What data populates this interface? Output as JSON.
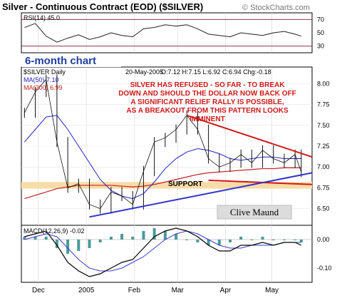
{
  "title": "Silver - Continuous Contract (EOD) ($SILVER)",
  "watermark": "© StockCharts.com",
  "period_label": "6-month chart",
  "colors": {
    "price": "#111111",
    "ma50": "#2020c8",
    "ma200": "#c82020",
    "trend_red": "#d01818",
    "trend_blue": "#3333cc",
    "support_band": "#f8dca8",
    "annotation": "#d01818",
    "rsi_band": "#7a1a3a",
    "macd_line": "#000000",
    "macd_signal": "#3a3acc",
    "macd_hist": "#4a9a9a",
    "title_blue": "#1f3fa0"
  },
  "chart_data": [
    {
      "type": "line",
      "name": "rsi",
      "title": "RSI(14) 45.0",
      "ylim": [
        20,
        80
      ],
      "yticks": [
        "70",
        "50",
        "30"
      ],
      "reference_lines": [
        70,
        30
      ],
      "x": [
        "2004-11-22",
        "2004-11-29",
        "2004-12-06",
        "2004-12-13",
        "2004-12-20",
        "2004-12-27",
        "2005-01-03",
        "2005-01-10",
        "2005-01-17",
        "2005-01-24",
        "2005-01-31",
        "2005-02-07",
        "2005-02-14",
        "2005-02-21",
        "2005-02-28",
        "2005-03-07",
        "2005-03-14",
        "2005-03-21",
        "2005-03-28",
        "2005-04-04",
        "2005-04-11",
        "2005-04-18",
        "2005-04-25",
        "2005-05-02",
        "2005-05-09",
        "2005-05-16",
        "2005-05-20"
      ],
      "values": [
        58,
        64,
        45,
        36,
        42,
        47,
        40,
        44,
        50,
        46,
        44,
        56,
        58,
        62,
        60,
        62,
        56,
        48,
        46,
        44,
        50,
        48,
        46,
        50,
        52,
        48,
        45
      ]
    },
    {
      "type": "line",
      "name": "price",
      "title": "$SILVER Daily",
      "date_label": "20-May-2005",
      "ohlc_text": "O:7.12 H:7.15 L:6.92 C:6.94 Chg:-0.18",
      "ylim": [
        6.3,
        8.2
      ],
      "yticks": [
        "8.00",
        "7.75",
        "7.50",
        "7.25",
        "7.00",
        "6.75",
        "6.50"
      ],
      "legend": [
        "$SILVER Daily",
        "MA(50) 7.10",
        "MA(200) 6.99"
      ],
      "annotation": "SILVER HAS REFUSED - SO FAR - TO BREAK DOWN AND SHOULD THE DOLLAR NOW BACK OFF A SIGNIFICANT RELIEF RALLY IS POSSIBLE, AS A BREAKOUT FROM THIS PATTERN LOOKS IMMINENT",
      "support_label": "SUPPORT",
      "signature": "Clive Maund",
      "support_band": [
        6.74,
        6.82
      ],
      "x": [
        "2004-11-22",
        "2004-11-29",
        "2004-12-06",
        "2004-12-13",
        "2004-12-20",
        "2004-12-27",
        "2005-01-03",
        "2005-01-10",
        "2005-01-17",
        "2005-01-24",
        "2005-01-31",
        "2005-02-07",
        "2005-02-14",
        "2005-02-21",
        "2005-02-28",
        "2005-03-07",
        "2005-03-14",
        "2005-03-21",
        "2005-03-28",
        "2005-04-04",
        "2005-04-11",
        "2005-04-18",
        "2005-04-25",
        "2005-05-02",
        "2005-05-09",
        "2005-05-16",
        "2005-05-20"
      ],
      "series": [
        {
          "name": "$SILVER Daily",
          "values": [
            7.65,
            7.9,
            8.05,
            7.3,
            6.75,
            6.8,
            6.55,
            6.5,
            6.7,
            6.65,
            6.55,
            6.95,
            7.3,
            7.35,
            7.45,
            7.62,
            7.45,
            7.1,
            7.0,
            7.05,
            7.15,
            7.05,
            7.2,
            7.1,
            7.05,
            7.15,
            6.94
          ]
        },
        {
          "name": "MA(50) 7.10",
          "values": [
            7.3,
            7.45,
            7.6,
            7.62,
            7.45,
            7.25,
            7.05,
            6.85,
            6.72,
            6.65,
            6.62,
            6.68,
            6.82,
            6.98,
            7.1,
            7.18,
            7.22,
            7.2,
            7.16,
            7.1,
            7.08,
            7.1,
            7.12,
            7.12,
            7.1,
            7.1,
            7.1
          ]
        },
        {
          "name": "MA(200) 6.99",
          "values": [
            6.62,
            6.66,
            6.7,
            6.74,
            6.76,
            6.78,
            6.78,
            6.78,
            6.78,
            6.77,
            6.76,
            6.77,
            6.79,
            6.82,
            6.85,
            6.88,
            6.91,
            6.93,
            6.94,
            6.95,
            6.96,
            6.97,
            6.98,
            6.98,
            6.99,
            6.99,
            6.99
          ]
        }
      ],
      "trendlines": [
        {
          "from": [
            "2005-03-07",
            7.62
          ],
          "to": [
            "2005-05-27",
            7.12
          ]
        },
        {
          "from": [
            "2005-03-21",
            6.84
          ],
          "to": [
            "2005-05-27",
            6.79
          ]
        },
        {
          "from": [
            "2005-01-03",
            6.4
          ],
          "to": [
            "2005-05-27",
            6.93
          ]
        }
      ]
    },
    {
      "type": "line",
      "name": "macd",
      "title": "MACD(12,26,9) -0.02",
      "ylim": [
        -0.15,
        0.05
      ],
      "yticks": [
        "0.00",
        "-0.10"
      ],
      "x_tick_labels": [
        "Dec",
        "2005",
        "Feb",
        "Mar",
        "Apr",
        "May"
      ],
      "x_tick_dates": [
        "2004-12-01",
        "2005-01-01",
        "2005-02-01",
        "2005-03-01",
        "2005-04-01",
        "2005-05-01"
      ],
      "x": [
        "2004-11-22",
        "2004-11-29",
        "2004-12-06",
        "2004-12-13",
        "2004-12-20",
        "2004-12-27",
        "2005-01-03",
        "2005-01-10",
        "2005-01-17",
        "2005-01-24",
        "2005-01-31",
        "2005-02-07",
        "2005-02-14",
        "2005-02-21",
        "2005-02-28",
        "2005-03-07",
        "2005-03-14",
        "2005-03-21",
        "2005-03-28",
        "2005-04-04",
        "2005-04-11",
        "2005-04-18",
        "2005-04-25",
        "2005-05-02",
        "2005-05-09",
        "2005-05-16",
        "2005-05-20"
      ],
      "series": [
        {
          "name": "MACD",
          "values": [
            0.01,
            0.02,
            0.03,
            -0.02,
            -0.08,
            -0.11,
            -0.13,
            -0.12,
            -0.1,
            -0.08,
            -0.07,
            -0.03,
            0.01,
            0.03,
            0.04,
            0.03,
            0.01,
            -0.02,
            -0.04,
            -0.04,
            -0.02,
            -0.02,
            -0.01,
            -0.02,
            -0.01,
            -0.01,
            -0.02
          ]
        },
        {
          "name": "Signal",
          "values": [
            0.0,
            0.01,
            0.02,
            0.01,
            -0.03,
            -0.07,
            -0.1,
            -0.11,
            -0.11,
            -0.1,
            -0.08,
            -0.06,
            -0.03,
            0.0,
            0.02,
            0.03,
            0.02,
            0.0,
            -0.02,
            -0.03,
            -0.03,
            -0.02,
            -0.02,
            -0.02,
            -0.01,
            -0.01,
            -0.01
          ]
        },
        {
          "name": "Histogram",
          "values": [
            0.01,
            0.01,
            0.01,
            -0.03,
            -0.05,
            -0.04,
            -0.03,
            -0.01,
            0.01,
            0.02,
            0.01,
            0.03,
            0.04,
            0.03,
            0.02,
            0.0,
            -0.01,
            -0.02,
            -0.02,
            -0.01,
            0.01,
            0.0,
            0.01,
            0.0,
            0.0,
            0.0,
            -0.01
          ]
        }
      ]
    }
  ]
}
